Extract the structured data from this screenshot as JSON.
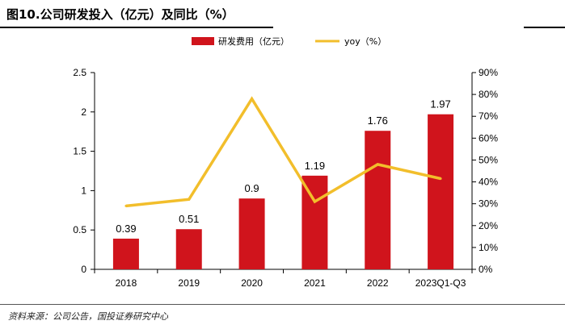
{
  "figure": {
    "title": "图10.公司研发投入（亿元）及同比（%）",
    "source": "资料来源：公司公告，国投证券研究中心"
  },
  "colors": {
    "bar": "#d0141c",
    "line": "#f2be2b",
    "axis": "#000000"
  },
  "chart_data": {
    "type": "bar",
    "categories": [
      "2018",
      "2019",
      "2020",
      "2021",
      "2022",
      "2023Q1-Q3"
    ],
    "series": [
      {
        "name": "研发费用（亿元）",
        "type": "bar",
        "axis": "left",
        "values": [
          0.39,
          0.51,
          0.9,
          1.19,
          1.76,
          1.97
        ],
        "labels": [
          "0.39",
          "0.51",
          "0.9",
          "1.19",
          "1.76",
          "1.97"
        ]
      },
      {
        "name": "yoy（%）",
        "type": "line",
        "axis": "right",
        "values": [
          29,
          32,
          78,
          31,
          48,
          41.5
        ]
      }
    ],
    "left_axis": {
      "ylim": [
        0,
        2.5
      ],
      "ticks": [
        "0",
        "0.5",
        "1",
        "1.5",
        "2",
        "2.5"
      ]
    },
    "right_axis": {
      "ylim": [
        0,
        90
      ],
      "ticks": [
        "0%",
        "10%",
        "20%",
        "30%",
        "40%",
        "50%",
        "60%",
        "70%",
        "80%",
        "90%"
      ]
    },
    "legend_position": "top"
  }
}
